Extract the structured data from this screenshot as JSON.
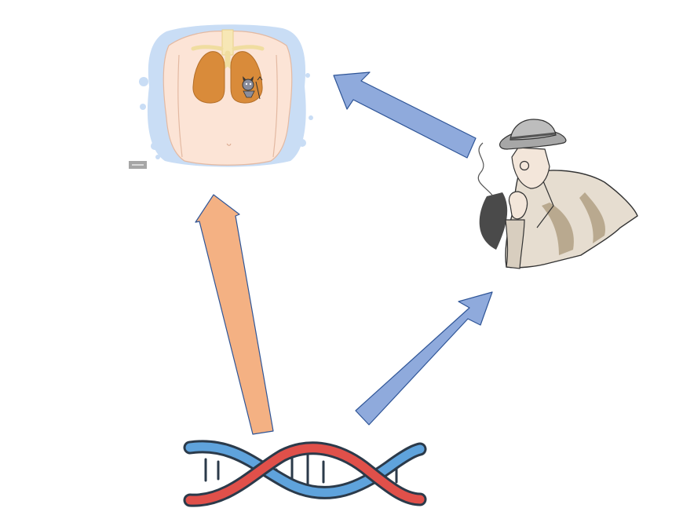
{
  "diagram": {
    "nodes": [
      {
        "id": "lungs",
        "icon": "lungs-torso-icon",
        "role": "disease outcome"
      },
      {
        "id": "smoker",
        "icon": "smoking-detective-icon",
        "role": "exposure"
      },
      {
        "id": "dna",
        "icon": "dna-double-helix-icon",
        "role": "genetic variant"
      }
    ],
    "edges": [
      {
        "from": "dna",
        "to": "lungs",
        "color": "#F4B183"
      },
      {
        "from": "dna",
        "to": "smoker",
        "color": "#8FAADC"
      },
      {
        "from": "smoker",
        "to": "lungs",
        "color": "#8FAADC"
      }
    ]
  },
  "colors": {
    "arrow_orange": "#F4B183",
    "arrow_blue": "#8FAADC",
    "arrow_outline": "#2F5597",
    "dna_red": "#E0504A",
    "dna_blue": "#5FA3DC",
    "skin": "#FCE4D6",
    "lung": "#D98B3A",
    "halo": "#C9DDF5"
  }
}
